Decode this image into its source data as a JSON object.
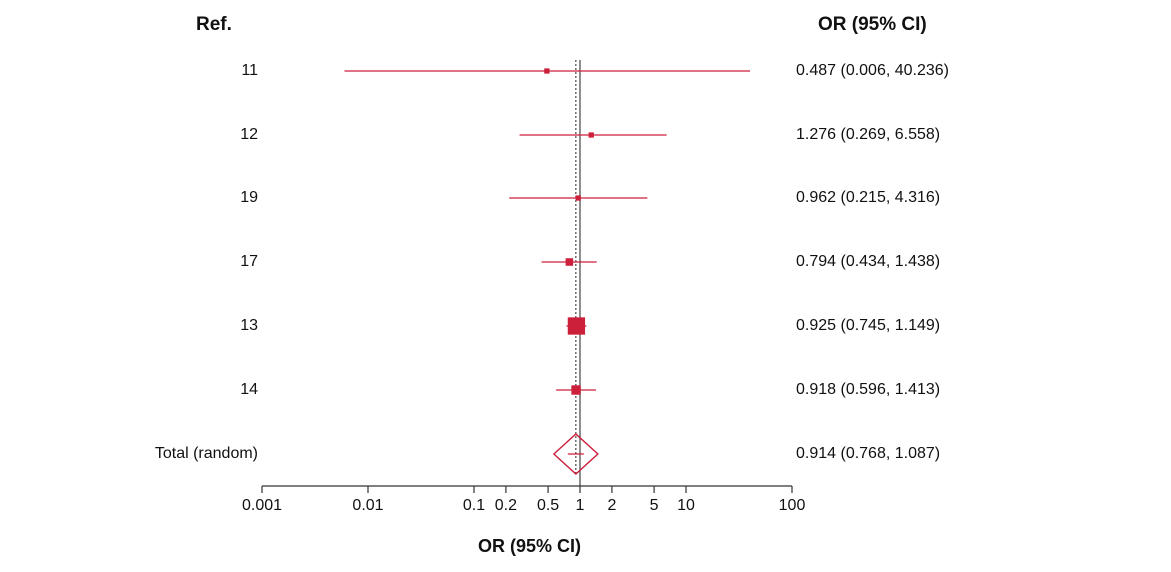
{
  "headers": {
    "ref": "Ref.",
    "or": "OR (95% CI)"
  },
  "xaxis_title": "OR (95% CI)",
  "colors": {
    "study": "#cc1f3a",
    "axis": "#333333",
    "null_line": "#444444"
  },
  "chart_data": {
    "type": "forest",
    "scale": "log",
    "xlim": [
      0.001,
      100
    ],
    "grid": false,
    "ticks": [
      {
        "value": 0.001,
        "label": "0.001"
      },
      {
        "value": 0.01,
        "label": "0.01"
      },
      {
        "value": 0.1,
        "label": "0.1"
      },
      {
        "value": 0.2,
        "label": "0.2"
      },
      {
        "value": 0.5,
        "label": "0.5"
      },
      {
        "value": 1,
        "label": "1"
      },
      {
        "value": 2,
        "label": "2"
      },
      {
        "value": 5,
        "label": "5"
      },
      {
        "value": 10,
        "label": "10"
      },
      {
        "value": 100,
        "label": "100"
      }
    ],
    "reference_line": 1,
    "pooled_line": 0.914,
    "studies": [
      {
        "label": "11",
        "or": 0.487,
        "lo": 0.006,
        "hi": 40.236,
        "ci_text": "0.487 (0.006, 40.236)",
        "weight": 0.5
      },
      {
        "label": "12",
        "or": 1.276,
        "lo": 0.269,
        "hi": 6.558,
        "ci_text": "1.276 (0.269, 6.558)",
        "weight": 0.5
      },
      {
        "label": "19",
        "or": 0.962,
        "lo": 0.215,
        "hi": 4.316,
        "ci_text": "0.962 (0.215, 4.316)",
        "weight": 0.5
      },
      {
        "label": "17",
        "or": 0.794,
        "lo": 0.434,
        "hi": 1.438,
        "ci_text": "0.794 (0.434, 1.438)",
        "weight": 2
      },
      {
        "label": "13",
        "or": 0.925,
        "lo": 0.745,
        "hi": 1.149,
        "ci_text": "0.925 (0.745, 1.149)",
        "weight": 20
      },
      {
        "label": "14",
        "or": 0.918,
        "lo": 0.596,
        "hi": 1.413,
        "ci_text": "0.918 (0.596, 1.413)",
        "weight": 4
      }
    ],
    "total": {
      "label": "Total (random)",
      "or": 0.914,
      "lo": 0.768,
      "hi": 1.087,
      "ci_text": "0.914 (0.768, 1.087)"
    }
  }
}
